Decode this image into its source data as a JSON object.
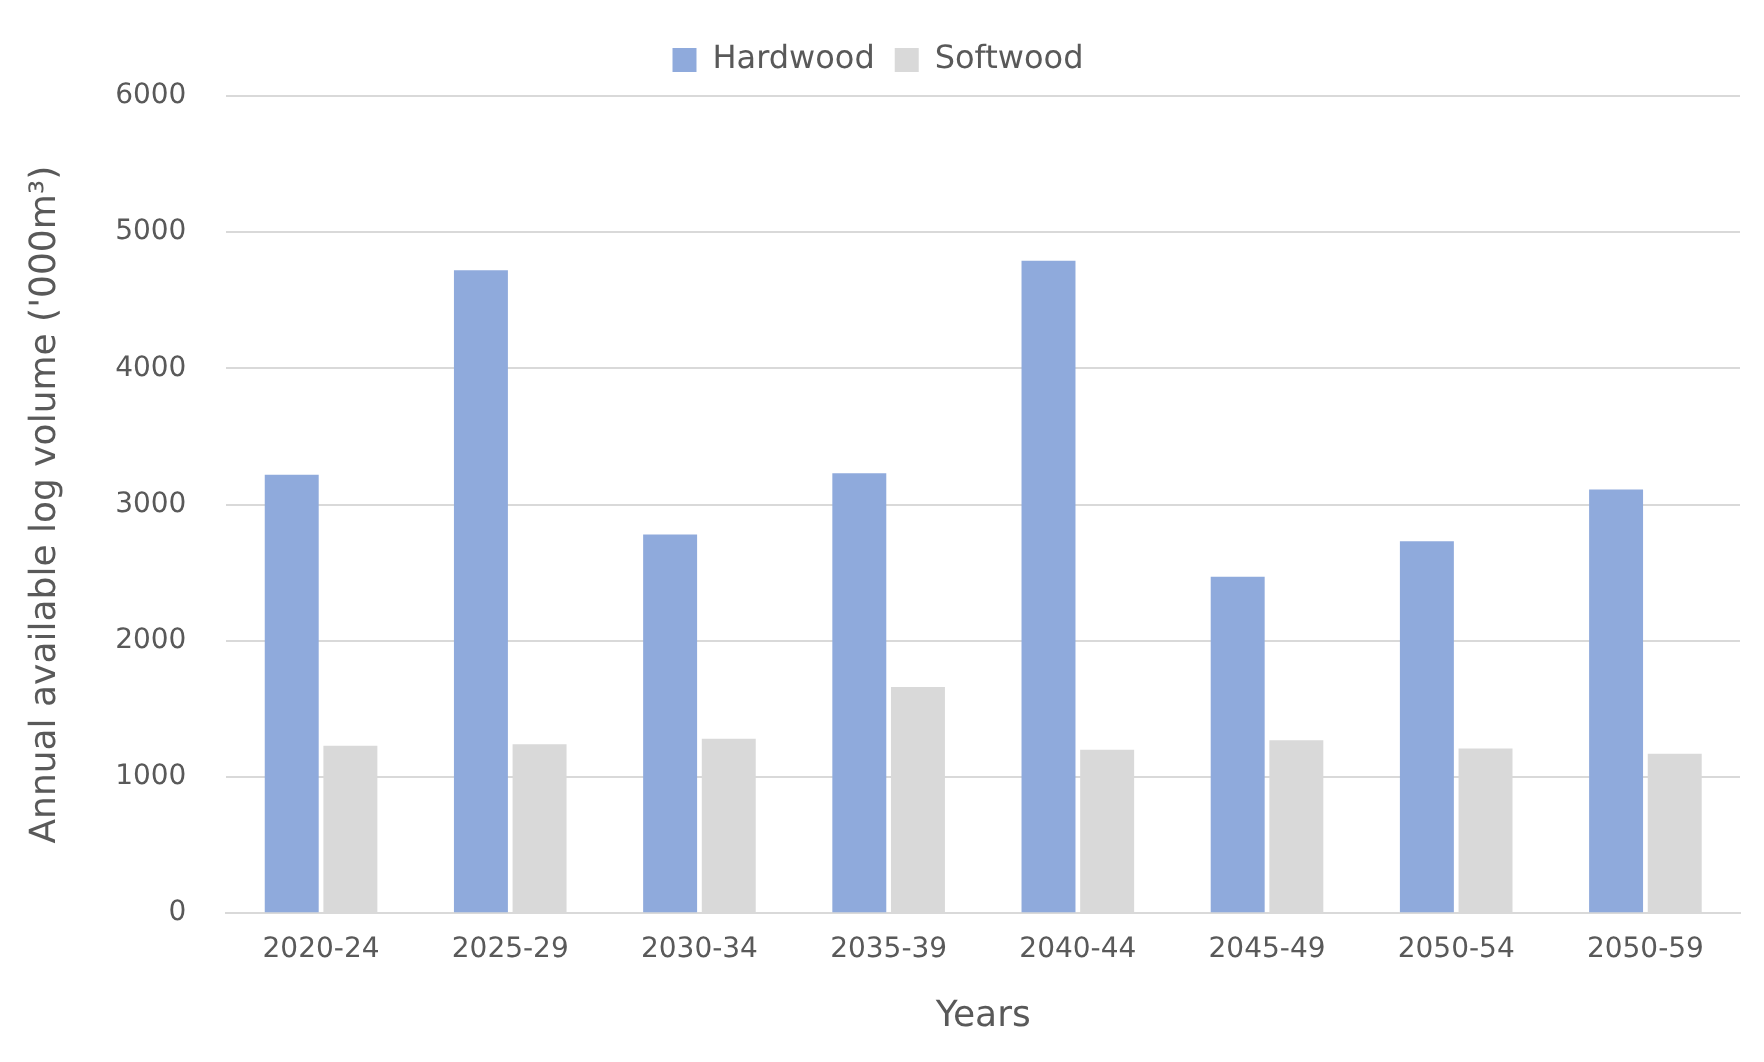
{
  "chart_data": {
    "type": "bar",
    "xlabel": "Years",
    "ylabel": "Annual available log volume ('000m³)",
    "categories": [
      "2020-24",
      "2025-29",
      "2030-34",
      "2035-39",
      "2040-44",
      "2045-49",
      "2050-54",
      "2050-59"
    ],
    "series": [
      {
        "name": "Hardwood",
        "color": "#8faadc",
        "values": [
          3220,
          4720,
          2780,
          3230,
          4790,
          2470,
          2730,
          3110
        ]
      },
      {
        "name": "Softwood",
        "color": "#d9d9d9",
        "values": [
          1230,
          1240,
          1280,
          1660,
          1200,
          1270,
          1210,
          1170
        ]
      }
    ],
    "ylim": [
      0,
      6000
    ],
    "yticks": [
      0,
      1000,
      2000,
      3000,
      4000,
      5000,
      6000
    ],
    "grid": "y",
    "legend": "top"
  }
}
